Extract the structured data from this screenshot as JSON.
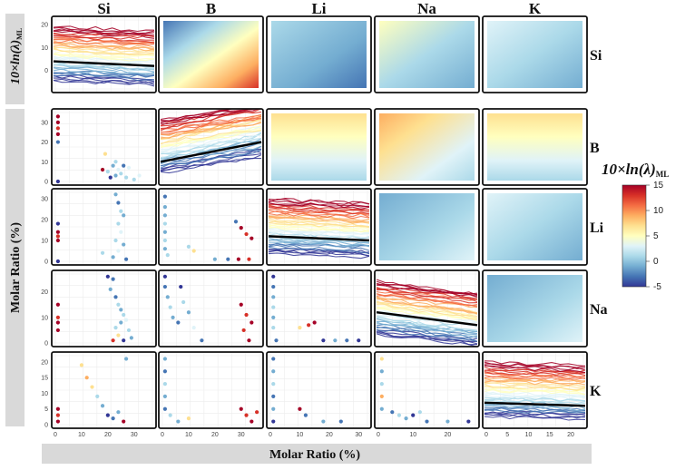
{
  "figure": {
    "elements": [
      "Si",
      "B",
      "Li",
      "Na",
      "K"
    ],
    "column_headers": [
      "Si",
      "B",
      "Li",
      "Na",
      "K"
    ],
    "row_labels": [
      "Si",
      "B",
      "Li",
      "Na",
      "K"
    ],
    "y_strip_title": "Molar Ratio (%)",
    "y_strip_title_top": "10×ln(λ)",
    "y_strip_title_top_sub": "ML",
    "x_strip_title": "Molar Ratio (%)",
    "colorbar": {
      "title": "10×ln(λ)",
      "subscript": "ML",
      "min": -5,
      "max": 15,
      "ticks": [
        "15",
        "10",
        "5",
        "0",
        "-5"
      ],
      "colors": [
        "#313695",
        "#4575b4",
        "#74add1",
        "#abd9e9",
        "#e0f3f8",
        "#ffffbf",
        "#fee090",
        "#fdae61",
        "#f46d43",
        "#d73027",
        "#a50026"
      ]
    }
  },
  "chart_data": {
    "type": "scatterplot-matrix",
    "description_layers": {
      "diagonal": "line",
      "lower": "scatter",
      "upper": "heatmap"
    },
    "panels": [
      {
        "row": "Si",
        "col": "Si",
        "type": "line",
        "yticks": [
          "20",
          "10",
          "0"
        ],
        "ylim": [
          -8,
          22
        ],
        "trend": [
          4,
          2
        ]
      },
      {
        "row": "Si",
        "col": "B",
        "type": "heatmap",
        "gradient": "diagonal-warm"
      },
      {
        "row": "Si",
        "col": "Li",
        "type": "heatmap",
        "gradient": "cool"
      },
      {
        "row": "Si",
        "col": "Na",
        "type": "heatmap",
        "gradient": "mixed"
      },
      {
        "row": "Si",
        "col": "K",
        "type": "heatmap",
        "gradient": "cool-light"
      },
      {
        "row": "B",
        "col": "Si",
        "type": "scatter",
        "yticks": [
          "30",
          "20",
          "10",
          "0"
        ],
        "ylim": [
          0,
          35
        ],
        "points": [
          [
            1,
            33,
            "#a50026"
          ],
          [
            1,
            30,
            "#a50026"
          ],
          [
            1,
            27,
            "#d73027"
          ],
          [
            1,
            24,
            "#a50026"
          ],
          [
            1,
            20,
            "#4575b4"
          ],
          [
            1,
            0,
            "#313695"
          ],
          [
            19,
            14,
            "#fee090"
          ],
          [
            18,
            6,
            "#a50026"
          ],
          [
            20,
            5,
            "#abd9e9"
          ],
          [
            22,
            8,
            "#74add1"
          ],
          [
            23,
            10,
            "#abd9e9"
          ],
          [
            24,
            6,
            "#e0f3f8"
          ],
          [
            21,
            2,
            "#313695"
          ],
          [
            25,
            4,
            "#abd9e9"
          ],
          [
            26,
            8,
            "#4575b4"
          ],
          [
            23,
            3,
            "#74add1"
          ],
          [
            27,
            2,
            "#abd9e9"
          ],
          [
            28,
            7,
            "#e0f3f8"
          ],
          [
            30,
            1,
            "#abd9e9"
          ],
          [
            32,
            3,
            "#e0f3f8"
          ]
        ]
      },
      {
        "row": "B",
        "col": "B",
        "type": "line",
        "yticks": [
          "30",
          "20",
          "10",
          "0"
        ],
        "ylim": [
          0,
          35
        ],
        "trend": [
          10,
          20
        ]
      },
      {
        "row": "B",
        "col": "Li",
        "type": "heatmap",
        "gradient": "warm-top"
      },
      {
        "row": "B",
        "col": "Na",
        "type": "heatmap",
        "gradient": "warm-topleft"
      },
      {
        "row": "B",
        "col": "K",
        "type": "heatmap",
        "gradient": "warm-top"
      },
      {
        "row": "Li",
        "col": "Si",
        "type": "scatter",
        "yticks": [
          "30",
          "20",
          "10",
          "0"
        ],
        "ylim": [
          0,
          33
        ],
        "points": [
          [
            1,
            18,
            "#313695"
          ],
          [
            1,
            14,
            "#a50026"
          ],
          [
            1,
            12,
            "#d73027"
          ],
          [
            1,
            10,
            "#a50026"
          ],
          [
            1,
            0,
            "#313695"
          ],
          [
            23,
            32,
            "#74add1"
          ],
          [
            24,
            28,
            "#4575b4"
          ],
          [
            25,
            24,
            "#abd9e9"
          ],
          [
            26,
            22,
            "#74add1"
          ],
          [
            24,
            18,
            "#abd9e9"
          ],
          [
            25,
            14,
            "#e0f3f8"
          ],
          [
            23,
            10,
            "#abd9e9"
          ],
          [
            26,
            8,
            "#74add1"
          ],
          [
            24,
            5,
            "#e0f3f8"
          ],
          [
            18,
            4,
            "#abd9e9"
          ],
          [
            22,
            2,
            "#74add1"
          ],
          [
            27,
            1,
            "#4575b4"
          ]
        ]
      },
      {
        "row": "Li",
        "col": "B",
        "type": "scatter",
        "yticks": [
          "30",
          "20",
          "10",
          "0"
        ],
        "ylim": [
          0,
          33
        ],
        "points": [
          [
            1,
            31,
            "#4575b4"
          ],
          [
            1,
            26,
            "#74add1"
          ],
          [
            1,
            22,
            "#74add1"
          ],
          [
            1,
            18,
            "#abd9e9"
          ],
          [
            1,
            14,
            "#74add1"
          ],
          [
            1,
            10,
            "#abd9e9"
          ],
          [
            1,
            6,
            "#74add1"
          ],
          [
            2,
            3,
            "#abd9e9"
          ],
          [
            10,
            7,
            "#abd9e9"
          ],
          [
            12,
            5,
            "#fee090"
          ],
          [
            28,
            19,
            "#4575b4"
          ],
          [
            30,
            16,
            "#a50026"
          ],
          [
            32,
            13,
            "#d73027"
          ],
          [
            34,
            11,
            "#a50026"
          ],
          [
            33,
            1,
            "#d73027"
          ],
          [
            20,
            1,
            "#74add1"
          ],
          [
            25,
            1,
            "#4575b4"
          ],
          [
            29,
            1,
            "#a50026"
          ]
        ]
      },
      {
        "row": "Li",
        "col": "Li",
        "type": "line",
        "yticks": [
          "30",
          "20",
          "10",
          "0"
        ],
        "ylim": [
          0,
          33
        ],
        "trend": [
          12,
          10
        ]
      },
      {
        "row": "Li",
        "col": "Na",
        "type": "heatmap",
        "gradient": "cool-mid"
      },
      {
        "row": "Li",
        "col": "K",
        "type": "heatmap",
        "gradient": "cool-light"
      },
      {
        "row": "Na",
        "col": "Si",
        "type": "scatter",
        "yticks": [
          "20",
          "10",
          "0"
        ],
        "ylim": [
          0,
          27
        ],
        "points": [
          [
            1,
            15,
            "#a50026"
          ],
          [
            1,
            10,
            "#d73027"
          ],
          [
            1,
            8,
            "#a50026"
          ],
          [
            1,
            5,
            "#a50026"
          ],
          [
            20,
            26,
            "#313695"
          ],
          [
            22,
            25,
            "#4575b4"
          ],
          [
            21,
            21,
            "#74add1"
          ],
          [
            23,
            18,
            "#4575b4"
          ],
          [
            24,
            15,
            "#abd9e9"
          ],
          [
            25,
            13,
            "#74add1"
          ],
          [
            26,
            11,
            "#abd9e9"
          ],
          [
            27,
            9,
            "#e0f3f8"
          ],
          [
            25,
            8,
            "#74add1"
          ],
          [
            23,
            6,
            "#abd9e9"
          ],
          [
            24,
            3,
            "#fee090"
          ],
          [
            22,
            1,
            "#d73027"
          ],
          [
            28,
            5,
            "#abd9e9"
          ],
          [
            29,
            2,
            "#74add1"
          ],
          [
            26,
            1,
            "#313695"
          ]
        ]
      },
      {
        "row": "Na",
        "col": "B",
        "type": "scatter",
        "yticks": [
          "20",
          "10",
          "0"
        ],
        "ylim": [
          0,
          27
        ],
        "points": [
          [
            1,
            26,
            "#313695"
          ],
          [
            1,
            22,
            "#4575b4"
          ],
          [
            2,
            18,
            "#74add1"
          ],
          [
            3,
            14,
            "#abd9e9"
          ],
          [
            4,
            10,
            "#74add1"
          ],
          [
            6,
            8,
            "#4575b4"
          ],
          [
            7,
            22,
            "#313695"
          ],
          [
            8,
            16,
            "#abd9e9"
          ],
          [
            10,
            12,
            "#74add1"
          ],
          [
            12,
            6,
            "#e0f3f8"
          ],
          [
            30,
            15,
            "#a50026"
          ],
          [
            32,
            11,
            "#d73027"
          ],
          [
            34,
            8,
            "#a50026"
          ],
          [
            31,
            5,
            "#d73027"
          ],
          [
            33,
            1,
            "#a50026"
          ],
          [
            15,
            1,
            "#4575b4"
          ]
        ]
      },
      {
        "row": "Na",
        "col": "Li",
        "type": "scatter",
        "yticks": [
          "20",
          "10",
          "0"
        ],
        "ylim": [
          0,
          27
        ],
        "points": [
          [
            1,
            26,
            "#313695"
          ],
          [
            1,
            22,
            "#4575b4"
          ],
          [
            1,
            18,
            "#74add1"
          ],
          [
            1,
            14,
            "#abd9e9"
          ],
          [
            1,
            10,
            "#74add1"
          ],
          [
            1,
            6,
            "#abd9e9"
          ],
          [
            2,
            1,
            "#4575b4"
          ],
          [
            10,
            6,
            "#fee090"
          ],
          [
            13,
            7,
            "#d73027"
          ],
          [
            15,
            8,
            "#a50026"
          ],
          [
            18,
            1,
            "#313695"
          ],
          [
            22,
            1,
            "#74add1"
          ],
          [
            26,
            1,
            "#4575b4"
          ],
          [
            30,
            1,
            "#313695"
          ]
        ]
      },
      {
        "row": "Na",
        "col": "Na",
        "type": "line",
        "yticks": [
          "20",
          "10",
          "0"
        ],
        "ylim": [
          0,
          27
        ],
        "trend": [
          12,
          7
        ]
      },
      {
        "row": "Na",
        "col": "K",
        "type": "heatmap",
        "gradient": "cool-mid"
      },
      {
        "row": "K",
        "col": "Si",
        "type": "scatter",
        "yticks": [
          "20",
          "15",
          "10",
          "5",
          "0"
        ],
        "ylim": [
          0,
          22
        ],
        "points": [
          [
            1,
            5,
            "#a50026"
          ],
          [
            1,
            3,
            "#d73027"
          ],
          [
            1,
            1,
            "#a50026"
          ],
          [
            10,
            19,
            "#fee090"
          ],
          [
            12,
            15,
            "#fdae61"
          ],
          [
            14,
            12,
            "#fee090"
          ],
          [
            16,
            9,
            "#abd9e9"
          ],
          [
            18,
            6,
            "#74add1"
          ],
          [
            20,
            3,
            "#313695"
          ],
          [
            22,
            2,
            "#4575b4"
          ],
          [
            24,
            4,
            "#74add1"
          ],
          [
            26,
            1,
            "#a50026"
          ],
          [
            27,
            21,
            "#74add1"
          ]
        ]
      },
      {
        "row": "K",
        "col": "B",
        "type": "scatter",
        "yticks": [
          "20",
          "15",
          "10",
          "5",
          "0"
        ],
        "ylim": [
          0,
          22
        ],
        "points": [
          [
            1,
            21,
            "#74add1"
          ],
          [
            1,
            17,
            "#4575b4"
          ],
          [
            1,
            13,
            "#abd9e9"
          ],
          [
            1,
            9,
            "#74add1"
          ],
          [
            1,
            5,
            "#4575b4"
          ],
          [
            3,
            3,
            "#abd9e9"
          ],
          [
            6,
            1,
            "#74add1"
          ],
          [
            10,
            2,
            "#fee090"
          ],
          [
            30,
            5,
            "#a50026"
          ],
          [
            32,
            3,
            "#d73027"
          ],
          [
            34,
            1,
            "#a50026"
          ],
          [
            36,
            4,
            "#d73027"
          ]
        ]
      },
      {
        "row": "K",
        "col": "Li",
        "type": "scatter",
        "yticks": [
          "20",
          "15",
          "10",
          "5",
          "0"
        ],
        "ylim": [
          0,
          22
        ],
        "points": [
          [
            1,
            21,
            "#4575b4"
          ],
          [
            1,
            17,
            "#74add1"
          ],
          [
            1,
            13,
            "#abd9e9"
          ],
          [
            1,
            9,
            "#4575b4"
          ],
          [
            1,
            5,
            "#74add1"
          ],
          [
            1,
            1,
            "#313695"
          ],
          [
            10,
            5,
            "#a50026"
          ],
          [
            12,
            3,
            "#4575b4"
          ],
          [
            18,
            1,
            "#74add1"
          ],
          [
            24,
            1,
            "#4575b4"
          ]
        ]
      },
      {
        "row": "K",
        "col": "Na",
        "type": "scatter",
        "yticks": [
          "20",
          "15",
          "10",
          "5",
          "0"
        ],
        "ylim": [
          0,
          22
        ],
        "points": [
          [
            1,
            21,
            "#fee090"
          ],
          [
            1,
            17,
            "#74add1"
          ],
          [
            1,
            13,
            "#abd9e9"
          ],
          [
            1,
            9,
            "#fdae61"
          ],
          [
            1,
            5,
            "#74add1"
          ],
          [
            4,
            4,
            "#4575b4"
          ],
          [
            6,
            3,
            "#abd9e9"
          ],
          [
            8,
            2,
            "#74add1"
          ],
          [
            10,
            3,
            "#313695"
          ],
          [
            12,
            4,
            "#abd9e9"
          ],
          [
            14,
            1,
            "#4575b4"
          ],
          [
            20,
            1,
            "#74add1"
          ],
          [
            26,
            1,
            "#313695"
          ]
        ]
      },
      {
        "row": "K",
        "col": "K",
        "type": "line",
        "yticks": [
          "20",
          "15",
          "10",
          "5",
          "0"
        ],
        "ylim": [
          0,
          22
        ],
        "trend": [
          7,
          6
        ]
      }
    ],
    "x_axes": [
      {
        "col": "Si",
        "ticks": [
          "0",
          "10",
          "20",
          "30"
        ],
        "xlim": [
          0,
          37
        ]
      },
      {
        "col": "B",
        "ticks": [
          "0",
          "10",
          "20",
          "30"
        ],
        "xlim": [
          0,
          37
        ]
      },
      {
        "col": "Li",
        "ticks": [
          "0",
          "10",
          "20",
          "30"
        ],
        "xlim": [
          0,
          33
        ]
      },
      {
        "col": "Na",
        "ticks": [
          "0",
          "10",
          "20"
        ],
        "xlim": [
          0,
          28
        ]
      },
      {
        "col": "K",
        "ticks": [
          "0",
          "5",
          "10",
          "15",
          "20"
        ],
        "xlim": [
          0,
          23
        ]
      }
    ]
  }
}
